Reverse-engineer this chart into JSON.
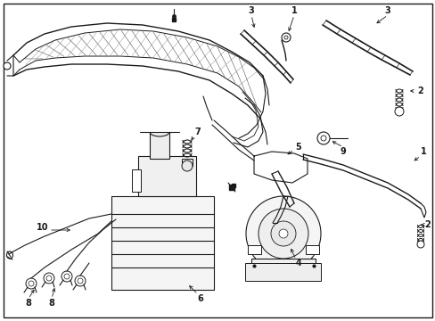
{
  "background_color": "#ffffff",
  "border_color": "#000000",
  "figsize": [
    4.89,
    3.6
  ],
  "dpi": 100,
  "lc": "#1a1a1a",
  "lw": 0.8
}
